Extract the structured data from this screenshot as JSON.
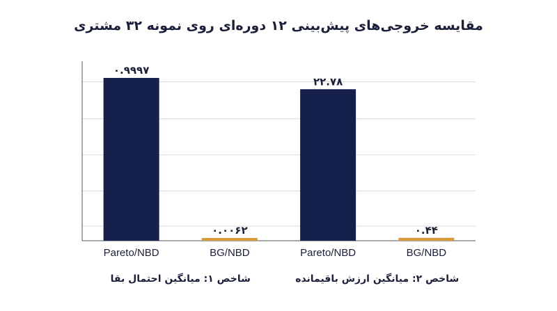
{
  "page": {
    "title": "مقایسه خروجی‌های پیش‌بینی ۱۲ دوره‌ای روی نمونه ۳۲ مشتری"
  },
  "chart_data": {
    "type": "bar",
    "title": "مقایسه خروجی‌های پیش‌بینی ۱۲ دوره‌ای روی نمونه ۳۲ مشتری",
    "grid": true,
    "colors": {
      "Pareto/NBD": "#16204d",
      "BG/NBD": "#d69a3c",
      "grid": "#d9d9d9",
      "axis": "#555555"
    },
    "panels": [
      {
        "group_label": "شاخص ۱: میانگین احتمال بقا",
        "categories": [
          "Pareto/NBD",
          "BG/NBD"
        ],
        "values": [
          0.9997,
          0.0062
        ],
        "value_labels": [
          "۰.۹۹۹۷",
          "۰.۰۰۶۲"
        ],
        "ylim": [
          0,
          0.9997
        ]
      },
      {
        "group_label": "شاخص ۲: میانگین ارزش باقیمانده",
        "categories": [
          "Pareto/NBD",
          "BG/NBD"
        ],
        "values": [
          22.78,
          0.44
        ],
        "value_labels": [
          "۲۲.۷۸",
          "۰.۴۴"
        ],
        "ylim": [
          0,
          24.48
        ]
      }
    ]
  }
}
